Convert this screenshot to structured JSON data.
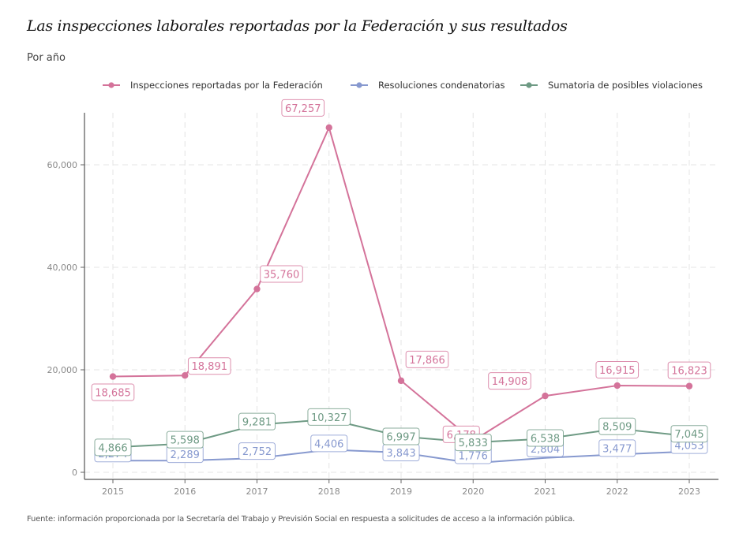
{
  "header": {
    "title": "Las inspecciones laborales reportadas por la Federación y sus resultados",
    "subtitle": "Por año"
  },
  "footer": {
    "caption": "Fuente: información proporcionada por la Secretaría del Trabajo y Previsión Social en respuesta a solicitudes de acceso a la información pública."
  },
  "chart_data": {
    "type": "line",
    "title": "Las inspecciones laborales reportadas por la Federación y sus resultados",
    "subtitle": "Por año",
    "xlabel": "",
    "ylabel": "",
    "x": [
      2015,
      2016,
      2017,
      2018,
      2019,
      2020,
      2021,
      2022,
      2023
    ],
    "x_tick_labels": [
      "2015",
      "2016",
      "2017",
      "2018",
      "2019",
      "2020",
      "2021",
      "2022",
      "2023"
    ],
    "ylim": [
      0,
      70000
    ],
    "y_ticks": [
      0,
      20000,
      40000,
      60000
    ],
    "y_tick_labels": [
      "0",
      "20,000",
      "40,000",
      "60,000"
    ],
    "grid": true,
    "legend_position": "top",
    "series": [
      {
        "name": "Inspecciones reportadas por la Federación",
        "color": "#d4739a",
        "values": [
          18685,
          18891,
          35760,
          67257,
          17866,
          6178,
          14908,
          16915,
          16823
        ],
        "labels": [
          "18,685",
          "18,891",
          "35,760",
          "67,257",
          "17,866",
          "6,178",
          "14,908",
          "16,915",
          "16,823"
        ]
      },
      {
        "name": "Resoluciones condenatorias",
        "color": "#8799cf",
        "values": [
          2274,
          2289,
          2752,
          4406,
          3843,
          1776,
          2804,
          3477,
          4053
        ],
        "labels": [
          "2,274",
          "2,289",
          "2,752",
          "4,406",
          "3,843",
          "1,776",
          "2,804",
          "3,477",
          "4,053"
        ]
      },
      {
        "name": "Sumatoria de posibles violaciones",
        "color": "#6e9a84",
        "values": [
          4866,
          5598,
          9281,
          10327,
          6997,
          5833,
          6538,
          8509,
          7045
        ],
        "labels": [
          "4,866",
          "5,598",
          "9,281",
          "10,327",
          "6,997",
          "5,833",
          "6,538",
          "8,509",
          "7,045"
        ]
      }
    ]
  }
}
